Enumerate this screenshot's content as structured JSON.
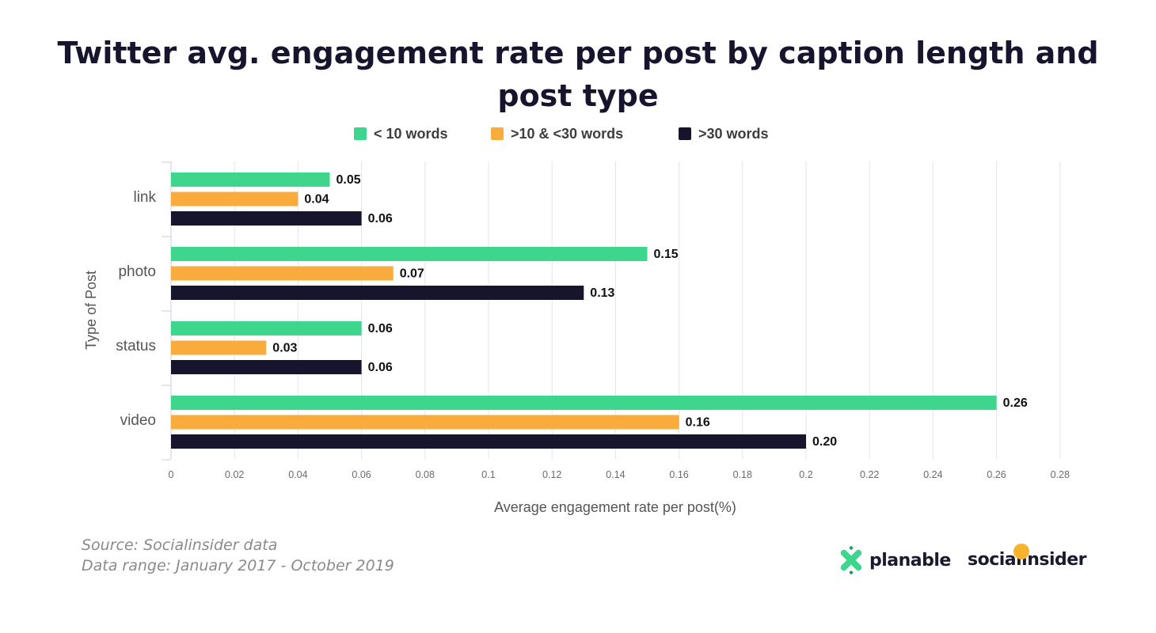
{
  "chart_data": {
    "type": "bar",
    "orientation": "horizontal",
    "title": "Twitter avg. engagement rate per post by caption length and post type",
    "xlabel": "Average engagement rate per post(%)",
    "ylabel": "Type of Post",
    "categories": [
      "link",
      "photo",
      "status",
      "video"
    ],
    "series": [
      {
        "name": "< 10 words",
        "color": "#3dd68c",
        "values": [
          0.05,
          0.15,
          0.06,
          0.26
        ],
        "labels": [
          "0.05",
          "0.15",
          "0.06",
          "0.26"
        ]
      },
      {
        "name": ">10 & <30 words",
        "color": "#f9ac3b",
        "values": [
          0.04,
          0.07,
          0.03,
          0.16
        ],
        "labels": [
          "0.04",
          "0.07",
          "0.03",
          "0.16"
        ]
      },
      {
        "name": ">30 words",
        "color": "#17142e",
        "values": [
          0.06,
          0.13,
          0.06,
          0.2
        ],
        "labels": [
          "0.06",
          "0.13",
          "0.06",
          "0.20"
        ]
      }
    ],
    "xlim": [
      0,
      0.28
    ],
    "xticks": [
      0,
      0.02,
      0.04,
      0.06,
      0.08,
      0.1,
      0.12,
      0.14,
      0.16,
      0.18,
      0.2,
      0.22,
      0.24,
      0.26,
      0.28
    ],
    "xtick_labels": [
      "0",
      "0.02",
      "0.04",
      "0.06",
      "0.08",
      "0.1",
      "0.12",
      "0.14",
      "0.16",
      "0.18",
      "0.2",
      "0.22",
      "0.24",
      "0.26",
      "0.28"
    ],
    "grid": true,
    "legend_position": "top"
  },
  "footer": {
    "source": "Source: Socialinsider data",
    "range": "Data range: January 2017 - October 2019"
  },
  "brands": {
    "planable": "planable",
    "socialinsider": "socialinsider",
    "planable_colors": [
      "#3dd68c",
      "#1e9e6a"
    ],
    "socialinsider_dot_color": "#f7b32b"
  }
}
